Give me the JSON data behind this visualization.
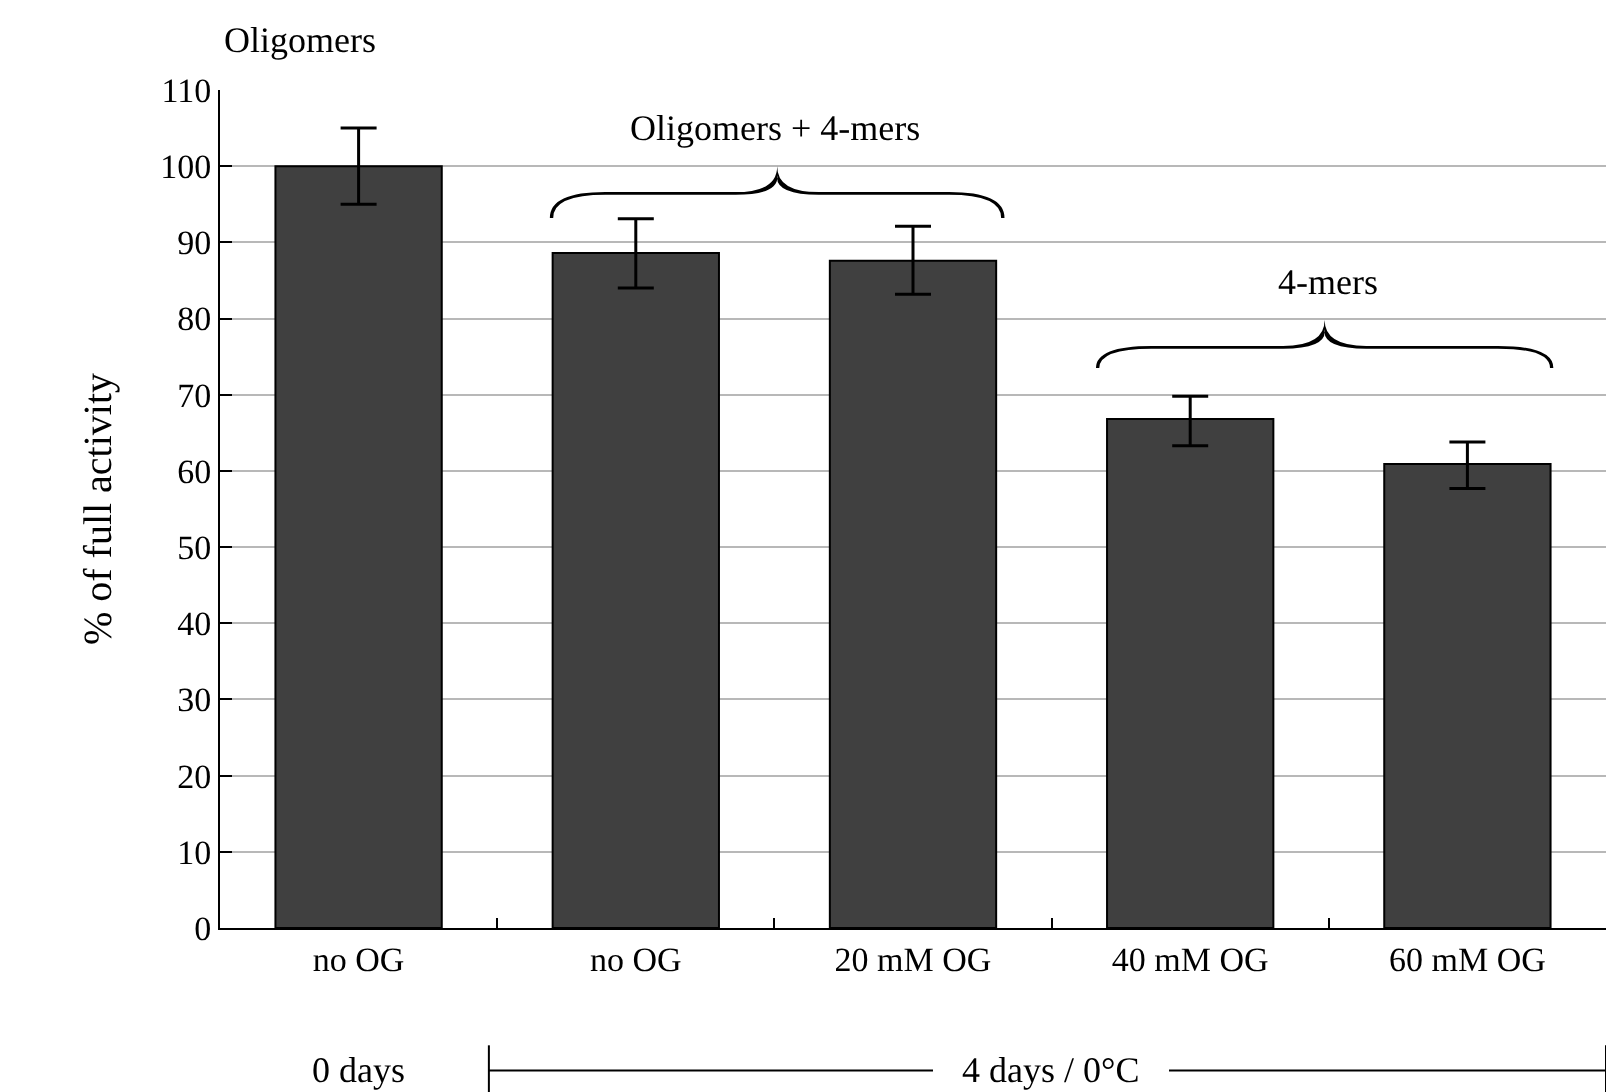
{
  "chart_data": {
    "type": "bar",
    "categories": [
      "no OG",
      "no OG",
      "20 mM OG",
      "40 mM OG",
      "60 mM OG"
    ],
    "values": [
      100,
      88.6,
      87.6,
      66.8,
      60.9
    ],
    "errors": [
      [
        95,
        105
      ],
      [
        84,
        93.1
      ],
      [
        83.2,
        92.1
      ],
      [
        63.3,
        69.8
      ],
      [
        57.7,
        63.8
      ]
    ],
    "color": "#404040",
    "ylabel": "% of full activity",
    "ylim": [
      0,
      110
    ],
    "yticks": [
      0,
      10,
      20,
      30,
      40,
      50,
      60,
      70,
      80,
      90,
      100,
      110
    ],
    "grid": "y",
    "legend": false,
    "annotations": [
      "Oligomers",
      "Oligomers + 4-mers",
      "4-mers",
      "0 days",
      "4 days / 0°C"
    ]
  }
}
